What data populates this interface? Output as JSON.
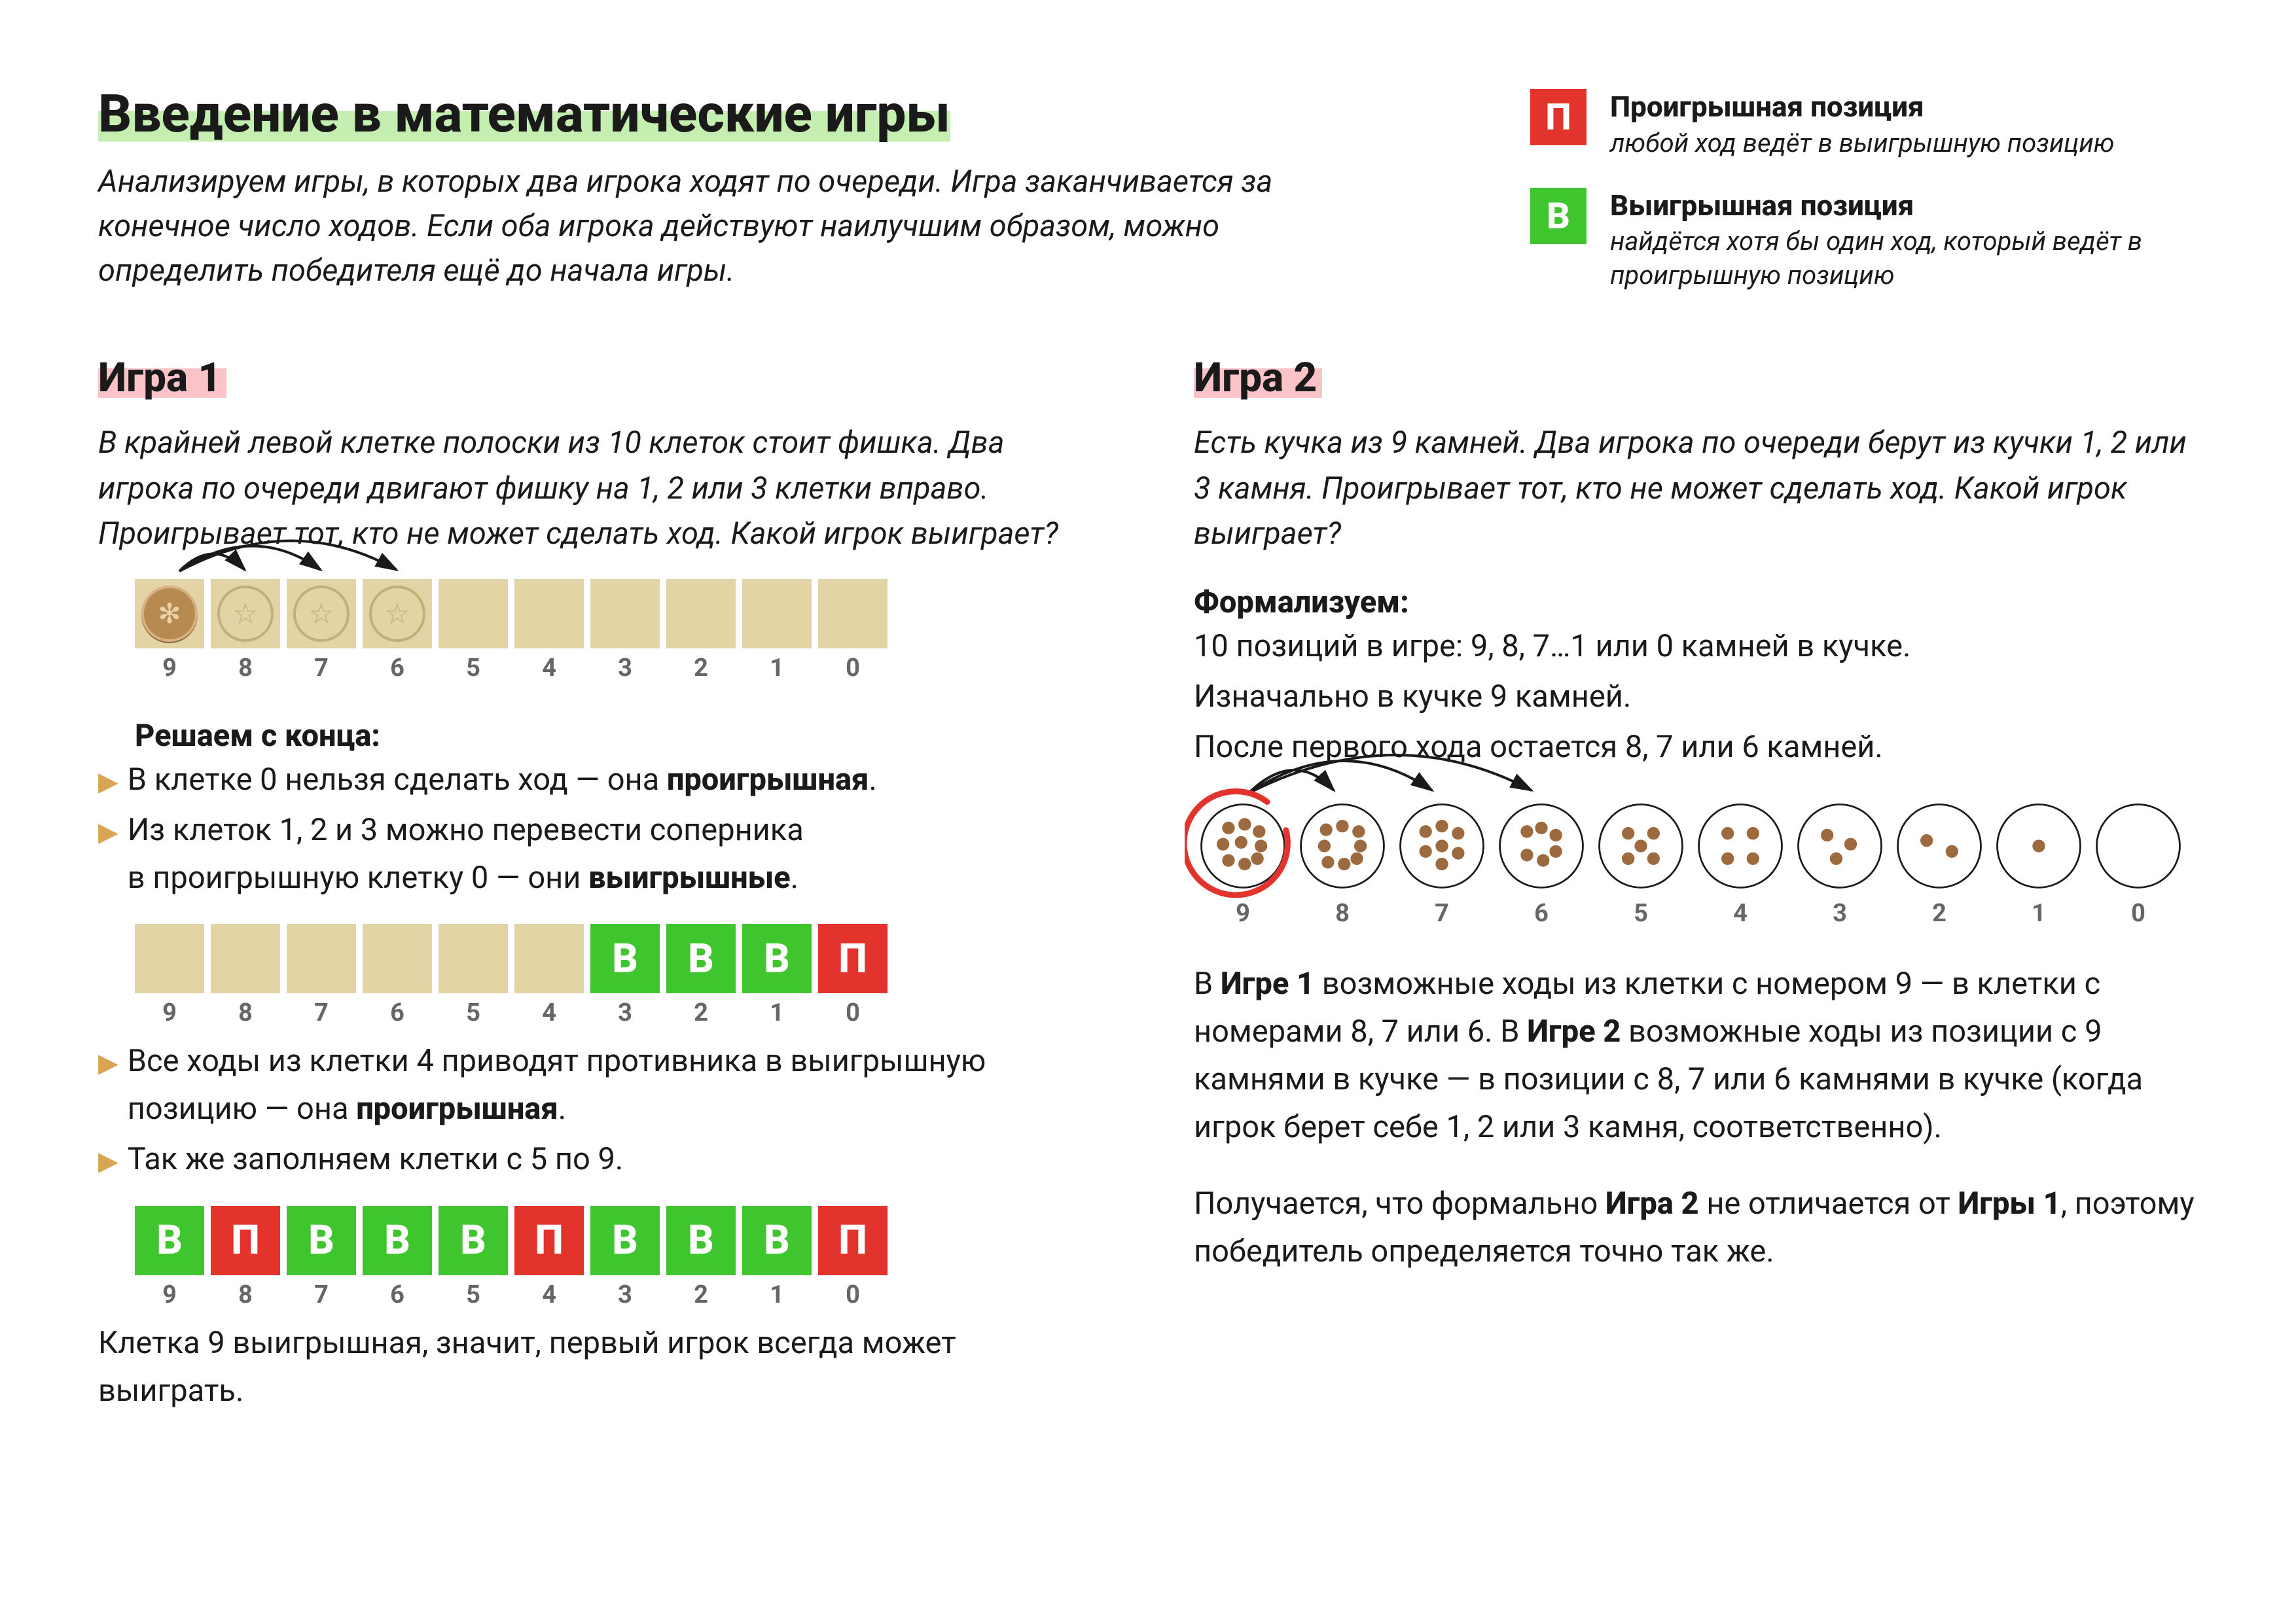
{
  "colors": {
    "lose": "#e3332d",
    "win": "#3fc52d",
    "highlight_green": "#c5efb1",
    "highlight_pink": "#f9c3c8",
    "tan_cell": "#e2d4a5",
    "token_brown": "#b78a52",
    "stone_brown": "#9c6a3e",
    "bullet": "#d9a453",
    "label_gray": "#666666"
  },
  "title": "Введение в математические игры",
  "intro": "Анализируем игры, в которых два игрока ходят по очереди. Игра заканчивается за конечное число ходов. Если оба игрока действуют наилучшим образом, можно определить победителя ещё до начала игры.",
  "legend": {
    "lose": {
      "badge": "П",
      "title": "Проигрышная позиция",
      "desc": "любой ход ведёт в выигрышную позицию"
    },
    "win": {
      "badge": "В",
      "title": "Выигрышная позиция",
      "desc": "найдётся хотя бы один ход, который ведёт в проигрышную позицию"
    }
  },
  "game1": {
    "heading": "Игра 1",
    "desc": "В крайней левой клетке полоски из 10 клеток стоит фишка. Два игрока по очереди двигают фишку на 1, 2 или 3 клетки вправо. Проигрывает тот, кто не может сделать ход. Какой игрок выиграет?",
    "strip_a": {
      "labels": [
        "9",
        "8",
        "7",
        "6",
        "5",
        "4",
        "3",
        "2",
        "1",
        "0"
      ],
      "token_at": 0,
      "ghosts_at": [
        1,
        2,
        3
      ]
    },
    "subhead": "Решаем с конца:",
    "b1_pre": "В клетке 0 нельзя сделать ход — она ",
    "b1_bold": "проигрышная",
    "b1_post": ".",
    "b2_line1": "Из клеток 1, 2 и 3 можно перевести соперника",
    "b2_line2_pre": "в проигрышную клетку 0 — они ",
    "b2_line2_bold": "выигрышные",
    "b2_line2_post": ".",
    "strip_b": {
      "labels": [
        "9",
        "8",
        "7",
        "6",
        "5",
        "4",
        "3",
        "2",
        "1",
        "0"
      ],
      "cells": [
        "",
        "",
        "",
        "",
        "",
        "",
        "В",
        "В",
        "В",
        "П"
      ]
    },
    "b3_pre": "Все ходы из клетки 4 приводят противника в выигрышную позицию — она ",
    "b3_bold": "проигрышная",
    "b3_post": ".",
    "b4": "Так же заполняем клетки с 5 по 9.",
    "strip_c": {
      "labels": [
        "9",
        "8",
        "7",
        "6",
        "5",
        "4",
        "3",
        "2",
        "1",
        "0"
      ],
      "cells": [
        "В",
        "П",
        "В",
        "В",
        "В",
        "П",
        "В",
        "В",
        "В",
        "П"
      ]
    },
    "conclusion": "Клетка 9 выигрышная, значит, первый игрок всегда может выиграть."
  },
  "game2": {
    "heading": "Игра 2",
    "desc": "Есть кучка из 9 камней. Два игрока по очереди берут из кучки 1, 2 или 3 камня. Проигрывает тот, кто не может сделать ход. Какой игрок выиграет?",
    "form_head": "Формализуем:",
    "form_l1": "10 позиций в игре: 9, 8, 7…1 или 0 камней в кучке.",
    "form_l2": "Изначально в кучке 9 камней.",
    "form_l3": "После первого хода остается 8, 7 или 6 камней.",
    "circles": {
      "counts": [
        9,
        8,
        7,
        6,
        5,
        4,
        3,
        2,
        1,
        0
      ],
      "labels": [
        "9",
        "8",
        "7",
        "6",
        "5",
        "4",
        "3",
        "2",
        "1",
        "0"
      ],
      "highlighted": 0
    },
    "para1_parts": [
      "В ",
      "Игре 1",
      " возможные ходы из клетки с номером 9 — в клетки с номерами 8, 7 или 6. В ",
      "Игре 2",
      " возможные ходы из позиции с 9 камнями в кучке — в позиции с 8, 7 или 6 камнями в кучке (когда игрок берет себе 1, 2 или 3 камня, соответственно)."
    ],
    "para2_parts": [
      "Получается, что формально ",
      "Игра 2",
      " не отличается от ",
      "Игры 1",
      ", поэтому победитель определяется точно так же."
    ]
  }
}
